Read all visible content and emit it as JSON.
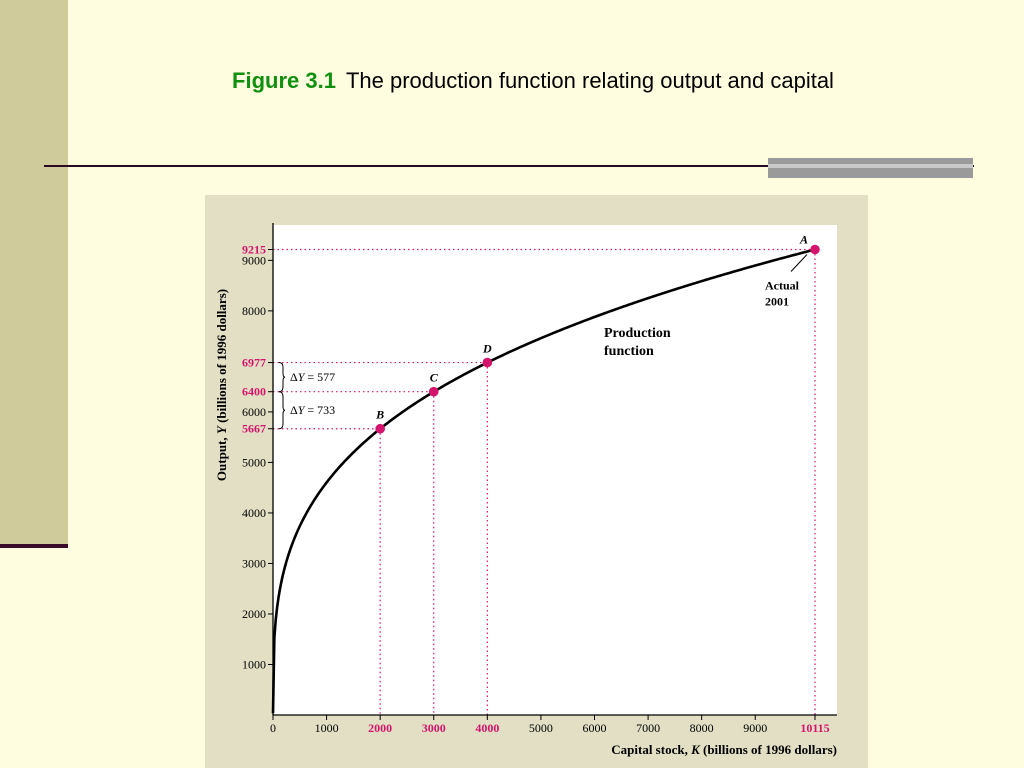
{
  "slide": {
    "figure_number": "Figure 3.1",
    "title": "The production function relating output and capital"
  },
  "colors": {
    "accent": "#d4146c",
    "curve": "#000000",
    "title_green": "#10900e",
    "panel_bg": "#e2dfc4"
  },
  "chart_data": {
    "type": "line",
    "x": [
      0,
      1000,
      2000,
      3000,
      4000,
      5000,
      6000,
      7000,
      8000,
      9000,
      10115
    ],
    "xlabel_prefix": "Capital stock, ",
    "xlabel_var": "K",
    "xlabel_suffix": " (billions of 1996 dollars)",
    "ylabel_prefix": "Output, ",
    "ylabel_var": "Y",
    "ylabel_suffix": " (billions of 1996 dollars)",
    "xlim": [
      0,
      10115
    ],
    "ylim": [
      0,
      9700
    ],
    "x_ticks": [
      "0",
      "1000",
      "2000",
      "3000",
      "4000",
      "5000",
      "6000",
      "7000",
      "8000",
      "9000",
      "10115"
    ],
    "x_tick_values": [
      0,
      1000,
      2000,
      3000,
      4000,
      5000,
      6000,
      7000,
      8000,
      9000,
      10115
    ],
    "x_ticks_highlight": [
      "2000",
      "3000",
      "4000",
      "10115"
    ],
    "y_ticks": [
      "1000",
      "2000",
      "3000",
      "4000",
      "5000",
      "6000",
      "8000",
      "9000"
    ],
    "y_tick_values": [
      1000,
      2000,
      3000,
      4000,
      5000,
      6000,
      8000,
      9000
    ],
    "y_ticks_highlight": [
      "5667",
      "6400",
      "6977",
      "9215"
    ],
    "y_highlight_values": [
      5667,
      6400,
      6977,
      9215
    ],
    "curve_label_line1": "Production",
    "curve_label_line2": "function",
    "points": [
      {
        "label": "B",
        "x": 2000,
        "y": 5667
      },
      {
        "label": "C",
        "x": 3000,
        "y": 6400
      },
      {
        "label": "D",
        "x": 4000,
        "y": 6977
      },
      {
        "label": "A",
        "x": 10115,
        "y": 9215
      }
    ],
    "actual_label_line1": "Actual",
    "actual_label_line2": "2001",
    "delta_upper": "= 577",
    "delta_lower": "= 733",
    "delta_prefix": "Δ",
    "delta_var": "Y"
  }
}
